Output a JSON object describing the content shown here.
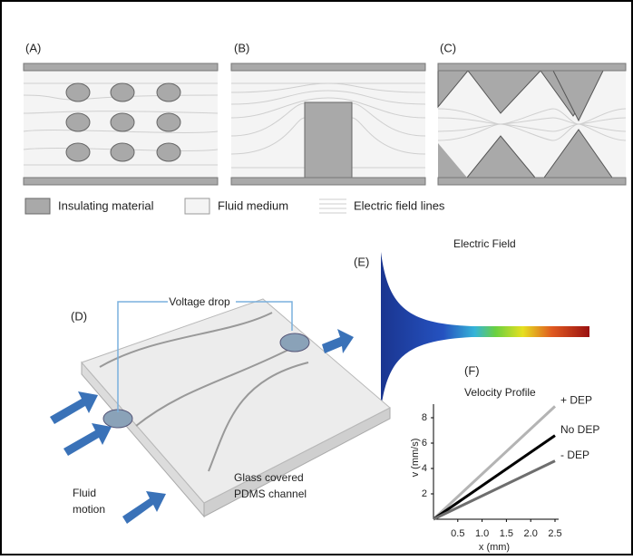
{
  "panels": {
    "a": {
      "label": "(A)"
    },
    "b": {
      "label": "(B)"
    },
    "c": {
      "label": "(C)"
    }
  },
  "legend": [
    "Insulating material",
    "Fluid medium",
    "Electric field lines"
  ],
  "panel_e": {
    "label": "(E)",
    "title": "Electric Field"
  },
  "panel_d": {
    "label": "(D)",
    "voltage": "Voltage drop",
    "channel": [
      "Glass covered",
      "PDMS channel"
    ],
    "fluid": [
      "Fluid",
      "motion"
    ]
  },
  "chart_data": {
    "type": "line",
    "label": "(F)",
    "title": "Velocity Profile",
    "x_label": "x (mm)",
    "y_label": "v (mm/s)",
    "x": [
      0,
      2.5
    ],
    "series": [
      {
        "name": "+ DEP",
        "color": "#b4b4b4",
        "values": [
          0,
          8.9
        ]
      },
      {
        "name": "No DEP",
        "color": "#000000",
        "values": [
          0,
          6.6
        ]
      },
      {
        "name": "- DEP",
        "color": "#6e6e6e",
        "values": [
          0,
          4.6
        ]
      }
    ],
    "xlim": [
      0,
      2.5
    ],
    "ylim": [
      0,
      9
    ],
    "xticks": [
      0.5,
      {
        "value": 1,
        "label": "1.0"
      },
      1.5,
      {
        "value": 2,
        "label": "2.0"
      },
      2.5
    ],
    "yticks": [
      2,
      4,
      6,
      8
    ]
  }
}
